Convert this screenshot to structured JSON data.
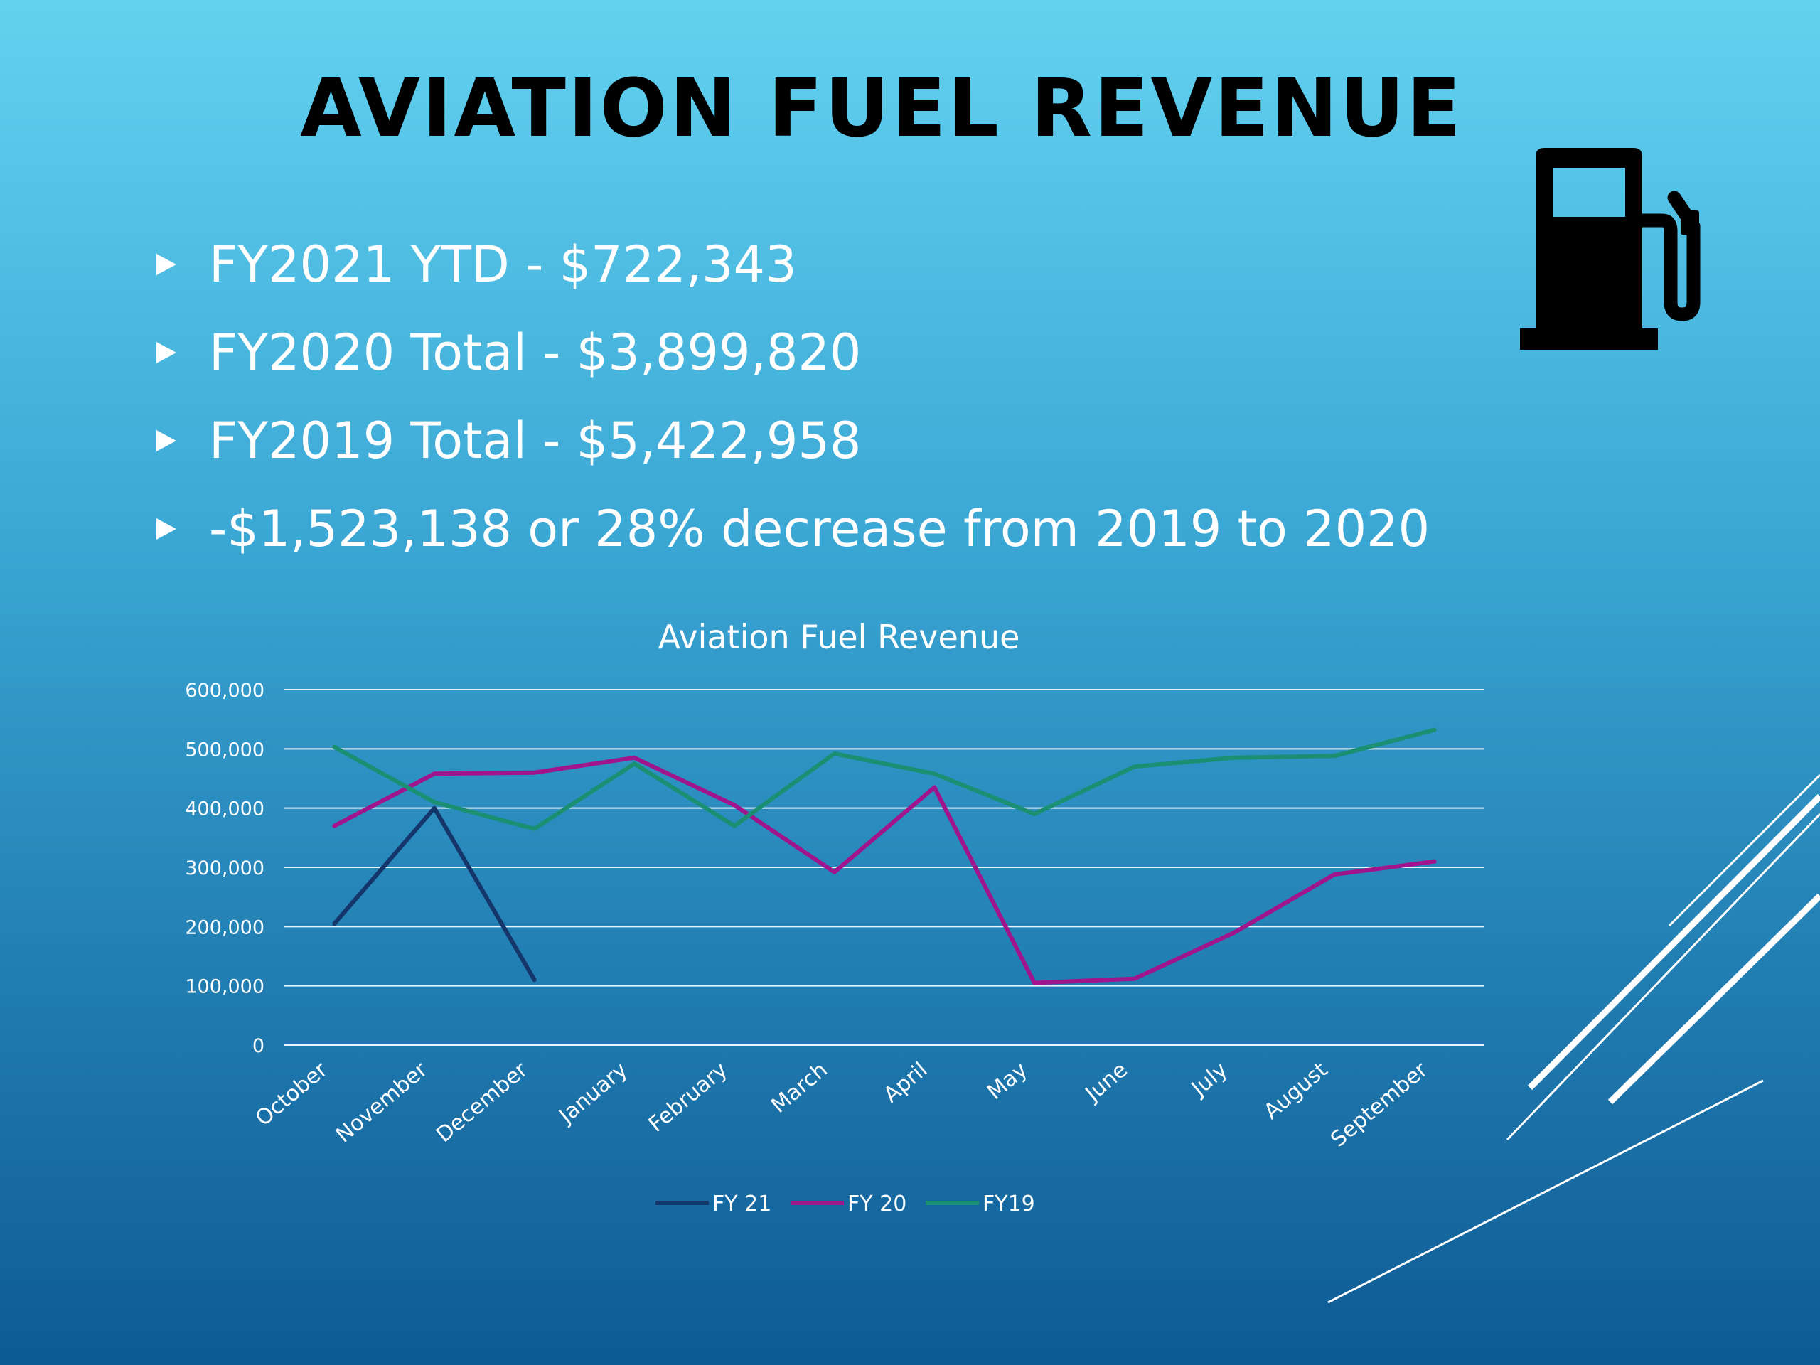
{
  "slide": {
    "title": "AVIATION FUEL REVENUE",
    "bullets": [
      "FY2021 YTD - $722,343",
      "FY2020 Total - $3,899,820",
      "FY2019 Total - $5,422,958",
      "-$1,523,138 or 28% decrease from 2019 to 2020"
    ],
    "icon": "fuel-pump-icon"
  },
  "chart_data": {
    "type": "line",
    "title": "Aviation Fuel Revenue",
    "categories": [
      "October",
      "November",
      "December",
      "January",
      "February",
      "March",
      "April",
      "May",
      "June",
      "July",
      "August",
      "September"
    ],
    "ylim": [
      0,
      600000
    ],
    "yticks": [
      "0",
      "100,000",
      "200,000",
      "300,000",
      "400,000",
      "500,000",
      "600,000"
    ],
    "grid": true,
    "legend": "bottom",
    "series": [
      {
        "name": "FY 21",
        "color": "#15366a",
        "values": [
          205000,
          400000,
          110000,
          null,
          null,
          null,
          null,
          null,
          null,
          null,
          null,
          null
        ]
      },
      {
        "name": "FY 20",
        "color": "#a0158c",
        "values": [
          370000,
          458000,
          460000,
          485000,
          405000,
          292000,
          435000,
          105000,
          112000,
          190000,
          288000,
          310000
        ]
      },
      {
        "name": "FY19",
        "color": "#1a8f72",
        "values": [
          503000,
          410000,
          365000,
          475000,
          370000,
          492000,
          458000,
          390000,
          470000,
          485000,
          488000,
          532000
        ]
      }
    ]
  }
}
